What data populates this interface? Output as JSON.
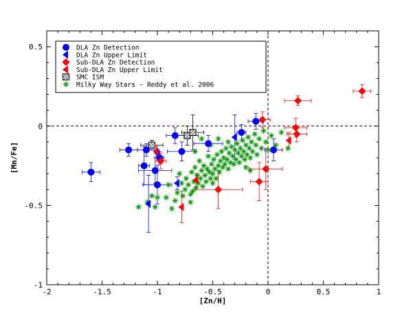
{
  "chart_data": {
    "type": "scatter",
    "xlabel": "[Zn/H]",
    "ylabel": "[Mn/Fe]",
    "xlim": [
      -2,
      1
    ],
    "ylim": [
      -1,
      0.6
    ],
    "xticks": [
      -2,
      -1.5,
      -1,
      -0.5,
      0,
      0.5,
      1
    ],
    "xtick_labels": [
      "-2",
      "-1.5",
      "-1",
      "-0.5",
      "0",
      "0.5",
      "1"
    ],
    "yticks": [
      -1,
      -0.5,
      0,
      0.5
    ],
    "ytick_labels": [
      "-1",
      "-0.5",
      "0",
      "0.5"
    ],
    "reference_lines": {
      "x": 0,
      "y": 0,
      "style": "dashed"
    },
    "grid": false,
    "legend_position": "top-left",
    "colors": {
      "dla": "#0000ff",
      "subdla": "#ff0000",
      "smc": "#000000",
      "mw": "#009900"
    },
    "series": [
      {
        "name": "DLA Zn Detection",
        "marker": "circle",
        "color": "#0000ff",
        "points": [
          {
            "x": -1.6,
            "y": -0.29,
            "xerr": 0.08,
            "yerr": 0.06
          },
          {
            "x": -1.26,
            "y": -0.15,
            "xerr": 0.08,
            "yerr": 0.04
          },
          {
            "x": -1.1,
            "y": -0.15,
            "xerr": 0.08,
            "yerr": 0.04
          },
          {
            "x": -1.12,
            "y": -0.25,
            "xerr": 0.05,
            "yerr": 0.12
          },
          {
            "x": -1.02,
            "y": -0.28,
            "xerr": 0.15,
            "yerr": 0.08
          },
          {
            "x": -1.0,
            "y": -0.37,
            "xerr": 0.13,
            "yerr": 0.12
          },
          {
            "x": -0.98,
            "y": -0.2,
            "xerr": 0.04,
            "yerr": 0.04
          },
          {
            "x": -0.84,
            "y": -0.06,
            "xerr": 0.08,
            "yerr": 0.05
          },
          {
            "x": -0.78,
            "y": -0.16,
            "xerr": 0.13,
            "yerr": 0.06
          },
          {
            "x": -0.54,
            "y": -0.11,
            "xerr": 0.13,
            "yerr": 0.05
          },
          {
            "x": -0.24,
            "y": -0.04,
            "xerr": 0.04,
            "yerr": 0.05
          },
          {
            "x": -0.11,
            "y": 0.03,
            "xerr": 0.07,
            "yerr": 0.05
          },
          {
            "x": 0.05,
            "y": -0.15,
            "xerr": 0.08,
            "yerr": 0.07
          }
        ]
      },
      {
        "name": "DLA Zn Upper Limit",
        "marker": "triangle-left",
        "color": "#0000ff",
        "points": [
          {
            "x": -1.08,
            "y": -0.49,
            "yerr": 0.18
          },
          {
            "x": -1.0,
            "y": -0.17,
            "yerr": 0.05
          },
          {
            "x": -0.82,
            "y": -0.36,
            "yerr": 0.04
          },
          {
            "x": -0.3,
            "y": -0.07,
            "yerr": 0.14
          }
        ]
      },
      {
        "name": "Sub-DLA Zn Detection",
        "marker": "diamond",
        "color": "#ff0000",
        "points": [
          {
            "x": -0.97,
            "y": -0.22,
            "xerr": 0.05,
            "yerr": 0.05
          },
          {
            "x": -0.45,
            "y": -0.4,
            "xerr": 0.22,
            "yerr": 0.12
          },
          {
            "x": -0.08,
            "y": -0.35,
            "xerr": 0.08,
            "yerr": 0.12
          },
          {
            "x": -0.05,
            "y": 0.04,
            "xerr": 0.07,
            "yerr": 0.05
          },
          {
            "x": -0.02,
            "y": -0.27,
            "xerr": 0.15,
            "yerr": 0.13
          },
          {
            "x": 0.25,
            "y": -0.01,
            "xerr": 0.1,
            "yerr": 0.06
          },
          {
            "x": 0.26,
            "y": -0.05,
            "xerr": 0.09,
            "yerr": 0.05
          },
          {
            "x": 0.27,
            "y": 0.16,
            "xerr": 0.12,
            "yerr": 0.03
          },
          {
            "x": 0.85,
            "y": 0.22,
            "xerr": 0.08,
            "yerr": 0.04
          }
        ]
      },
      {
        "name": "Sub-DLA Zn Upper Limit",
        "marker": "triangle-left",
        "color": "#ff0000",
        "points": [
          {
            "x": -1.01,
            "y": -0.16,
            "yerr": 0.04
          },
          {
            "x": -0.78,
            "y": -0.51,
            "yerr": 0.1
          },
          {
            "x": -0.65,
            "y": -0.34,
            "yerr": 0.04
          },
          {
            "x": 0.19,
            "y": -0.09,
            "yerr": 0.05
          }
        ]
      },
      {
        "name": "SMC ISM",
        "marker": "hatched-square",
        "color": "#000000",
        "points": [
          {
            "x": -1.05,
            "y": -0.12,
            "xerr": 0.1,
            "yerr": 0.03
          },
          {
            "x": -0.73,
            "y": -0.06,
            "xerr": 0.1,
            "yerr": 0.06
          },
          {
            "x": -0.68,
            "y": -0.04,
            "xerr": 0.1,
            "yerr": 0.11
          }
        ]
      },
      {
        "name": "Milky Way Stars - Reddy et al. 2006",
        "marker": "asterisk",
        "color": "#009900",
        "points": [
          {
            "x": -1.17,
            "y": -0.51
          },
          {
            "x": -1.09,
            "y": -0.48
          },
          {
            "x": -1.05,
            "y": -0.44
          },
          {
            "x": -1.0,
            "y": -0.45
          },
          {
            "x": -1.02,
            "y": -0.51
          },
          {
            "x": -0.92,
            "y": -0.45
          },
          {
            "x": -0.9,
            "y": -0.37
          },
          {
            "x": -0.87,
            "y": -0.52
          },
          {
            "x": -0.84,
            "y": -0.47
          },
          {
            "x": -0.82,
            "y": -0.42
          },
          {
            "x": -0.8,
            "y": -0.3
          },
          {
            "x": -0.78,
            "y": -0.36
          },
          {
            "x": -0.77,
            "y": -0.44
          },
          {
            "x": -0.75,
            "y": -0.4
          },
          {
            "x": -0.74,
            "y": -0.33
          },
          {
            "x": -0.72,
            "y": -0.37
          },
          {
            "x": -0.7,
            "y": -0.43
          },
          {
            "x": -0.69,
            "y": -0.29
          },
          {
            "x": -0.68,
            "y": -0.41
          },
          {
            "x": -0.67,
            "y": -0.35
          },
          {
            "x": -0.66,
            "y": -0.26
          },
          {
            "x": -0.65,
            "y": -0.39
          },
          {
            "x": -0.64,
            "y": -0.31
          },
          {
            "x": -0.63,
            "y": -0.36
          },
          {
            "x": -0.62,
            "y": -0.22
          },
          {
            "x": -0.61,
            "y": -0.33
          },
          {
            "x": -0.6,
            "y": -0.28
          },
          {
            "x": -0.59,
            "y": -0.38
          },
          {
            "x": -0.58,
            "y": -0.25
          },
          {
            "x": -0.57,
            "y": -0.31
          },
          {
            "x": -0.56,
            "y": -0.35
          },
          {
            "x": -0.55,
            "y": -0.27
          },
          {
            "x": -0.54,
            "y": -0.19
          },
          {
            "x": -0.53,
            "y": -0.29
          },
          {
            "x": -0.52,
            "y": -0.33
          },
          {
            "x": -0.51,
            "y": -0.24
          },
          {
            "x": -0.5,
            "y": -0.3
          },
          {
            "x": -0.49,
            "y": -0.21
          },
          {
            "x": -0.48,
            "y": -0.27
          },
          {
            "x": -0.47,
            "y": -0.33
          },
          {
            "x": -0.46,
            "y": -0.18
          },
          {
            "x": -0.45,
            "y": -0.25
          },
          {
            "x": -0.44,
            "y": -0.29
          },
          {
            "x": -0.43,
            "y": -0.22
          },
          {
            "x": -0.42,
            "y": -0.16
          },
          {
            "x": -0.41,
            "y": -0.26
          },
          {
            "x": -0.4,
            "y": -0.2
          },
          {
            "x": -0.39,
            "y": -0.24
          },
          {
            "x": -0.38,
            "y": -0.14
          },
          {
            "x": -0.37,
            "y": -0.21
          },
          {
            "x": -0.36,
            "y": -0.27
          },
          {
            "x": -0.35,
            "y": -0.17
          },
          {
            "x": -0.34,
            "y": -0.23
          },
          {
            "x": -0.33,
            "y": -0.13
          },
          {
            "x": -0.32,
            "y": -0.19
          },
          {
            "x": -0.31,
            "y": -0.24
          },
          {
            "x": -0.3,
            "y": -0.15
          },
          {
            "x": -0.29,
            "y": -0.21
          },
          {
            "x": -0.28,
            "y": -0.11
          },
          {
            "x": -0.27,
            "y": -0.17
          },
          {
            "x": -0.26,
            "y": -0.23
          },
          {
            "x": -0.25,
            "y": -0.14
          },
          {
            "x": -0.24,
            "y": -0.19
          },
          {
            "x": -0.23,
            "y": -0.09
          },
          {
            "x": -0.22,
            "y": -0.16
          },
          {
            "x": -0.21,
            "y": -0.21
          },
          {
            "x": -0.2,
            "y": -0.12
          },
          {
            "x": -0.19,
            "y": -0.18
          },
          {
            "x": -0.18,
            "y": -0.07
          },
          {
            "x": -0.17,
            "y": -0.14
          },
          {
            "x": -0.16,
            "y": -0.2
          },
          {
            "x": -0.15,
            "y": -0.1
          },
          {
            "x": -0.14,
            "y": -0.16
          },
          {
            "x": -0.12,
            "y": -0.05
          },
          {
            "x": -0.11,
            "y": -0.12
          },
          {
            "x": -0.1,
            "y": -0.18
          },
          {
            "x": -0.08,
            "y": -0.08
          },
          {
            "x": -0.06,
            "y": -0.14
          },
          {
            "x": -0.04,
            "y": -0.03
          },
          {
            "x": -0.02,
            "y": -0.1
          },
          {
            "x": 0.0,
            "y": -0.15
          },
          {
            "x": 0.03,
            "y": -0.06
          },
          {
            "x": 0.07,
            "y": -0.12
          },
          {
            "x": 0.12,
            "y": -0.04
          },
          {
            "x": 0.18,
            "y": -0.14
          },
          {
            "x": -0.2,
            "y": -0.26
          },
          {
            "x": -0.16,
            "y": -0.28
          },
          {
            "x": -0.52,
            "y": -0.12
          },
          {
            "x": -0.45,
            "y": -0.08
          },
          {
            "x": -0.36,
            "y": -0.1
          },
          {
            "x": -0.66,
            "y": -0.16
          },
          {
            "x": -0.6,
            "y": -0.08
          },
          {
            "x": -0.7,
            "y": -0.48
          },
          {
            "x": -0.5,
            "y": -0.36
          }
        ]
      }
    ]
  }
}
